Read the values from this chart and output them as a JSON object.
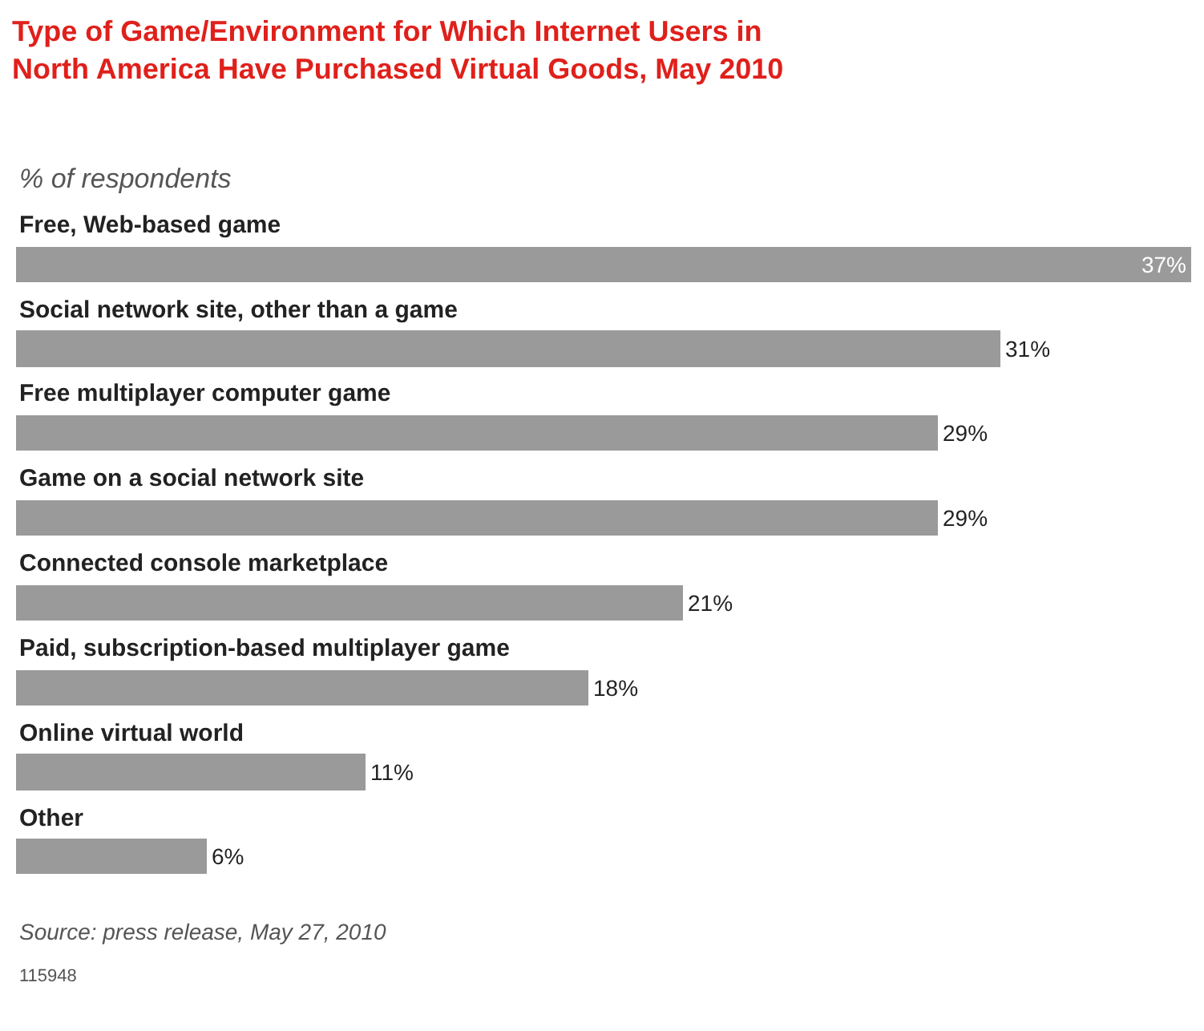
{
  "chart_data": {
    "type": "bar",
    "orientation": "horizontal",
    "title": "Type of Game/Environment for Which Internet Users in North America Have Purchased Virtual Goods, May 2010",
    "subtitle": "% of respondents",
    "categories": [
      "Free, Web-based game",
      "Social network site, other than a game",
      "Free multiplayer computer game",
      "Game on a social network site",
      "Connected console marketplace",
      "Paid, subscription-based multiplayer game",
      "Online virtual world",
      "Other"
    ],
    "values": [
      37,
      31,
      29,
      29,
      21,
      18,
      11,
      6
    ],
    "value_labels": [
      "37%",
      "31%",
      "29%",
      "29%",
      "21%",
      "18%",
      "11%",
      "6%"
    ],
    "color": "#9a9a9a",
    "annotations": [
      "Source: press release, May 27, 2010",
      "115948"
    ]
  }
}
